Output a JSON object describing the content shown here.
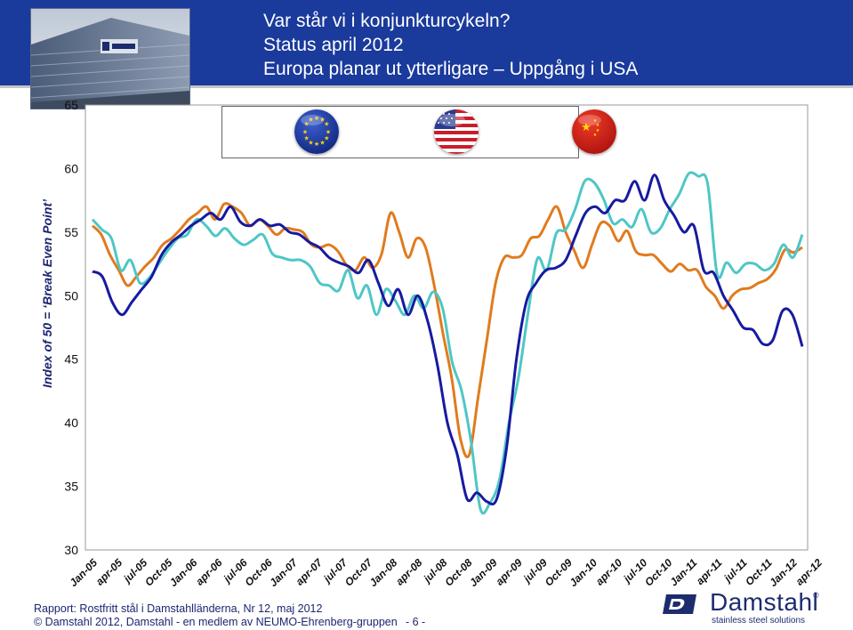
{
  "header": {
    "title_line1": "Var står vi i konjunkturcykeln?",
    "title_line2": "Status april 2012",
    "title_line3": "Europa planar ut ytterligare – Uppgång i USA"
  },
  "colors": {
    "header_bg": "#1a3a9c",
    "series_eu": "#e07b1e",
    "series_us": "#4fc6c6",
    "series_cn": "#171aa0"
  },
  "legend_flags": [
    "eu-flag",
    "us-flag",
    "china-flag"
  ],
  "chart_data": {
    "type": "line",
    "ylabel": "Index of 50 = ‘Break Even Point’",
    "ylim": [
      30,
      65
    ],
    "yticks": [
      "30",
      "35",
      "40",
      "45",
      "50",
      "55",
      "60",
      "65"
    ],
    "x_tick_labels": [
      "Jan-05",
      "apr-05",
      "jul-05",
      "Oct-05",
      "Jan-06",
      "apr-06",
      "jul-06",
      "Oct-06",
      "Jan-07",
      "apr-07",
      "jul-07",
      "Oct-07",
      "Jan-08",
      "apr-08",
      "jul-08",
      "Oct-08",
      "Jan-09",
      "apr-09",
      "jul-09",
      "Oct-09",
      "Jan-10",
      "apr-10",
      "jul-10",
      "Oct-10",
      "Jan-11",
      "apr-11",
      "jul-11",
      "Oct-11",
      "Jan-12",
      "apr-12"
    ],
    "grid": false,
    "series": [
      {
        "values": [
          55.5,
          54.8,
          53.2,
          52.0,
          50.8,
          51.5,
          52.3,
          53.0,
          54.0,
          54.5,
          55.2,
          56.0,
          56.5,
          57.0,
          56.0,
          57.2,
          57.0,
          56.5,
          55.5,
          56.0,
          55.5,
          54.8,
          55.3,
          55.2,
          55.0,
          54.0,
          53.8,
          54.0,
          53.5,
          52.4,
          52.0,
          53.0,
          52.2,
          53.3,
          56.5,
          55.0,
          53.0,
          54.5,
          53.8,
          50.8,
          47.0,
          43.5,
          38.7,
          37.5,
          42.0,
          46.5,
          51.0,
          53.0,
          53.0,
          53.2,
          54.5,
          54.7,
          56.0,
          57.0,
          55.0,
          53.5,
          52.2,
          54.0,
          55.7,
          55.5,
          54.3,
          55.1,
          53.5,
          53.2,
          53.2,
          52.5,
          51.9,
          52.5,
          52.0,
          52.0,
          50.7,
          50.0,
          49.0,
          50.0,
          50.5,
          50.6,
          51.0,
          51.3,
          52.1,
          53.6,
          53.4,
          53.8
        ]
      },
      {
        "values": [
          56.0,
          55.2,
          54.5,
          52.0,
          52.8,
          51.0,
          51.4,
          52.5,
          53.6,
          54.5,
          54.8,
          56.0,
          55.5,
          54.7,
          55.3,
          54.5,
          54.0,
          54.4,
          54.8,
          53.3,
          53.0,
          52.8,
          52.8,
          52.3,
          51.0,
          50.8,
          50.4,
          52.0,
          49.8,
          50.8,
          48.5,
          50.5,
          49.6,
          48.5,
          50.0,
          49.0,
          50.3,
          49.0,
          44.8,
          42.5,
          38.5,
          33.2,
          33.7,
          35.5,
          40.0,
          43.5,
          48.5,
          52.9,
          52.0,
          54.9,
          55.2,
          56.8,
          59.0,
          58.9,
          57.6,
          55.7,
          56.0,
          55.4,
          56.8,
          55.0,
          55.3,
          56.8,
          58.0,
          59.6,
          59.4,
          58.8,
          51.7,
          52.6,
          51.8,
          52.5,
          52.5,
          52.0,
          52.5,
          54.0,
          53.0,
          54.8
        ]
      },
      {
        "values": [
          51.9,
          51.5,
          49.5,
          48.5,
          49.5,
          50.5,
          51.5,
          53.2,
          54.2,
          54.8,
          55.5,
          56.0,
          56.5,
          56.0,
          57.0,
          55.8,
          55.5,
          56.0,
          55.5,
          55.6,
          55.0,
          54.8,
          54.2,
          53.8,
          53.0,
          52.6,
          52.3,
          51.8,
          52.8,
          51.0,
          49.2,
          50.5,
          48.5,
          50.0,
          48.0,
          44.5,
          40.0,
          37.5,
          34.0,
          34.5,
          33.8,
          34.0,
          38.0,
          45.0,
          49.5,
          51.0,
          52.0,
          52.2,
          52.8,
          54.7,
          56.5,
          57.0,
          56.5,
          57.5,
          57.5,
          59.0,
          57.5,
          59.5,
          57.5,
          56.3,
          55.0,
          55.5,
          52.0,
          51.8,
          50.0,
          48.8,
          47.5,
          47.3,
          46.2,
          46.5,
          48.8,
          48.5,
          46.0
        ]
      }
    ]
  },
  "footer": {
    "line1": "Rapport: Rostfritt stål i Damstahlländerna, Nr 12, maj 2012",
    "line2": "© Damstahl 2012, Damstahl - en medlem av NEUMO-Ehrenberg-gruppen",
    "page": "- 6 -"
  },
  "logo": {
    "name": "Damstahl",
    "registered": "®",
    "tagline": "stainless steel solutions"
  }
}
